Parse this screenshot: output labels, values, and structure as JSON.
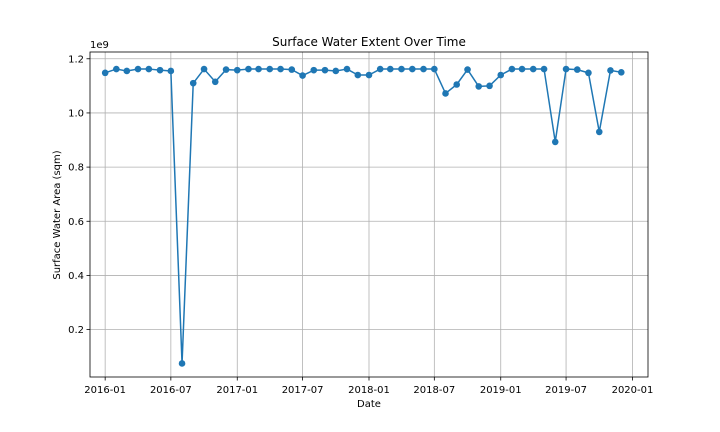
{
  "chart_data": {
    "type": "line",
    "title": "Surface Water Extent Over Time",
    "xlabel": "Date",
    "ylabel": "Surface Water Area (sqm)",
    "y_scale_note": "1e9",
    "x_ticks": [
      "2016-01",
      "2016-07",
      "2017-01",
      "2017-07",
      "2018-01",
      "2018-07",
      "2019-01",
      "2019-07",
      "2020-01"
    ],
    "y_ticks": [
      "0.2",
      "0.4",
      "0.6",
      "0.8",
      "1.0",
      "1.2"
    ],
    "xlim": [
      "2015-11-20",
      "2020-02-13"
    ],
    "ylim": [
      0.025,
      1.225
    ],
    "y_multiplier": 1000000000,
    "grid": true,
    "marker": "circle",
    "color": "#1f77b4",
    "series": [
      {
        "x": [
          "2016-01",
          "2016-02",
          "2016-03",
          "2016-04",
          "2016-05",
          "2016-06",
          "2016-07",
          "2016-08",
          "2016-09",
          "2016-10",
          "2016-11",
          "2016-12",
          "2017-01",
          "2017-02",
          "2017-03",
          "2017-04",
          "2017-05",
          "2017-06",
          "2017-07",
          "2017-08",
          "2017-09",
          "2017-10",
          "2017-11",
          "2017-12",
          "2018-01",
          "2018-02",
          "2018-03",
          "2018-04",
          "2018-05",
          "2018-06",
          "2018-07",
          "2018-08",
          "2018-09",
          "2018-10",
          "2018-11",
          "2018-12",
          "2019-01",
          "2019-02",
          "2019-03",
          "2019-04",
          "2019-05",
          "2019-06",
          "2019-07",
          "2019-08",
          "2019-09",
          "2019-10",
          "2019-11",
          "2019-12"
        ],
        "y": [
          1.148,
          1.162,
          1.155,
          1.162,
          1.162,
          1.158,
          1.155,
          0.075,
          1.11,
          1.162,
          1.115,
          1.16,
          1.158,
          1.162,
          1.162,
          1.162,
          1.162,
          1.16,
          1.138,
          1.158,
          1.158,
          1.155,
          1.162,
          1.14,
          1.14,
          1.162,
          1.162,
          1.162,
          1.162,
          1.162,
          1.162,
          1.072,
          1.105,
          1.16,
          1.098,
          1.1,
          1.14,
          1.162,
          1.162,
          1.162,
          1.162,
          0.893,
          1.162,
          1.16,
          1.148,
          0.93,
          1.157,
          1.15
        ]
      }
    ]
  }
}
